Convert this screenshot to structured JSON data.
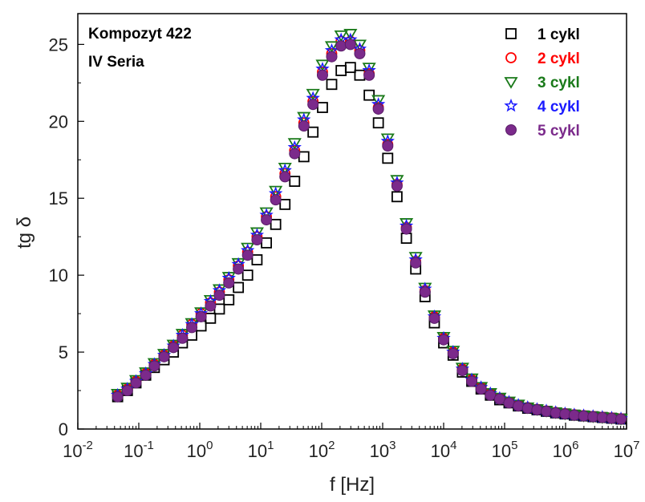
{
  "chart_data": {
    "type": "scatter",
    "annotations": [
      "Kompozyt 422",
      "IV Seria"
    ],
    "xlabel": "f [Hz]",
    "ylabel": "tg δ",
    "xscale": "log",
    "xlim": [
      0.01,
      10000000
    ],
    "ylim": [
      0,
      27
    ],
    "x_tick_labels": [
      {
        "base": "10",
        "exp": "-2"
      },
      {
        "base": "10",
        "exp": "-1"
      },
      {
        "base": "10",
        "exp": "0"
      },
      {
        "base": "10",
        "exp": "1"
      },
      {
        "base": "10",
        "exp": "2"
      },
      {
        "base": "10",
        "exp": "3"
      },
      {
        "base": "10",
        "exp": "4"
      },
      {
        "base": "10",
        "exp": "5"
      },
      {
        "base": "10",
        "exp": "6"
      },
      {
        "base": "10",
        "exp": "7"
      }
    ],
    "y_ticks": [
      0,
      5,
      10,
      15,
      20,
      25
    ],
    "legend_position": "top-right",
    "x": [
      0.045,
      0.065,
      0.09,
      0.13,
      0.18,
      0.26,
      0.37,
      0.52,
      0.74,
      1.05,
      1.5,
      2.1,
      3.0,
      4.3,
      6.1,
      8.7,
      12.4,
      17.6,
      25,
      36,
      51,
      72,
      103,
      146,
      208,
      296,
      421,
      600,
      850,
      1210,
      1720,
      2450,
      3480,
      4950,
      7050,
      10000,
      14300,
      20300,
      28900,
      41100,
      58400,
      83100,
      118000,
      168000,
      239000,
      340000,
      484000,
      688000,
      979000,
      1390000,
      1980000,
      2820000,
      4010000,
      5700000,
      8100000
    ],
    "series": [
      {
        "name": "1 cykl",
        "marker": "square",
        "color": "#000000",
        "filled": false,
        "values": [
          2.1,
          2.5,
          3.0,
          3.5,
          4.0,
          4.5,
          5.0,
          5.6,
          6.1,
          6.7,
          7.2,
          7.8,
          8.4,
          9.2,
          10.0,
          11.0,
          12.1,
          13.3,
          14.6,
          16.1,
          17.7,
          19.3,
          20.9,
          22.4,
          23.3,
          23.5,
          23.0,
          21.7,
          19.9,
          17.6,
          15.1,
          12.4,
          10.4,
          8.6,
          6.9,
          5.6,
          4.8,
          3.7,
          3.1,
          2.6,
          2.2,
          1.9,
          1.7,
          1.5,
          1.35,
          1.25,
          1.15,
          1.05,
          0.98,
          0.9,
          0.85,
          0.8,
          0.75,
          0.7,
          0.65
        ]
      },
      {
        "name": "2 cykl",
        "marker": "circle",
        "color": "#ff0000",
        "filled": false,
        "values": [
          2.2,
          2.6,
          3.1,
          3.6,
          4.2,
          4.8,
          5.4,
          6.1,
          6.8,
          7.5,
          8.2,
          8.9,
          9.7,
          10.6,
          11.5,
          12.5,
          13.8,
          15.1,
          16.6,
          18.1,
          19.9,
          21.3,
          23.2,
          24.4,
          25.2,
          25.2,
          24.6,
          23.1,
          20.9,
          18.5,
          15.9,
          13.1,
          10.9,
          9.0,
          7.3,
          5.9,
          5.0,
          3.9,
          3.2,
          2.7,
          2.3,
          2.0,
          1.75,
          1.55,
          1.4,
          1.28,
          1.18,
          1.08,
          1.0,
          0.93,
          0.87,
          0.82,
          0.77,
          0.72,
          0.67
        ]
      },
      {
        "name": "3 cykl",
        "marker": "triangle-down",
        "color": "#1a7a1a",
        "filled": false,
        "values": [
          2.3,
          2.7,
          3.2,
          3.7,
          4.3,
          4.9,
          5.5,
          6.2,
          6.9,
          7.6,
          8.4,
          9.1,
          9.9,
          10.8,
          11.8,
          12.8,
          14.1,
          15.5,
          17.0,
          18.6,
          20.3,
          21.8,
          23.7,
          24.9,
          25.6,
          25.7,
          25.0,
          23.5,
          21.4,
          18.9,
          16.2,
          13.4,
          11.2,
          9.2,
          7.4,
          6.0,
          5.1,
          4.0,
          3.3,
          2.75,
          2.35,
          2.05,
          1.8,
          1.6,
          1.42,
          1.3,
          1.2,
          1.1,
          1.02,
          0.95,
          0.89,
          0.83,
          0.78,
          0.73,
          0.68
        ]
      },
      {
        "name": "4 cykl",
        "marker": "star",
        "color": "#1a1aff",
        "filled": false,
        "values": [
          2.2,
          2.6,
          3.1,
          3.6,
          4.2,
          4.8,
          5.4,
          6.1,
          6.8,
          7.5,
          8.3,
          9.0,
          9.8,
          10.7,
          11.6,
          12.6,
          13.9,
          15.3,
          16.8,
          18.3,
          20.1,
          21.5,
          23.4,
          24.6,
          25.3,
          25.3,
          24.7,
          23.3,
          21.1,
          18.7,
          16.0,
          13.2,
          11.0,
          9.1,
          7.3,
          5.9,
          5.0,
          3.9,
          3.2,
          2.7,
          2.3,
          2.0,
          1.75,
          1.55,
          1.4,
          1.28,
          1.18,
          1.08,
          1.0,
          0.93,
          0.87,
          0.82,
          0.77,
          0.72,
          0.67
        ]
      },
      {
        "name": "5 cykl",
        "marker": "filled-circle",
        "color": "#7b2a8b",
        "filled": true,
        "values": [
          2.1,
          2.5,
          3.0,
          3.5,
          4.1,
          4.7,
          5.3,
          5.9,
          6.6,
          7.3,
          8.0,
          8.7,
          9.5,
          10.4,
          11.3,
          12.3,
          13.6,
          14.9,
          16.4,
          17.9,
          19.7,
          21.1,
          23.0,
          24.2,
          24.9,
          25.0,
          24.4,
          23.0,
          20.8,
          18.4,
          15.8,
          13.0,
          10.8,
          8.9,
          7.2,
          5.8,
          4.9,
          3.8,
          3.1,
          2.6,
          2.2,
          1.95,
          1.7,
          1.5,
          1.35,
          1.25,
          1.15,
          1.05,
          0.98,
          0.9,
          0.85,
          0.8,
          0.75,
          0.7,
          0.65
        ]
      }
    ]
  }
}
